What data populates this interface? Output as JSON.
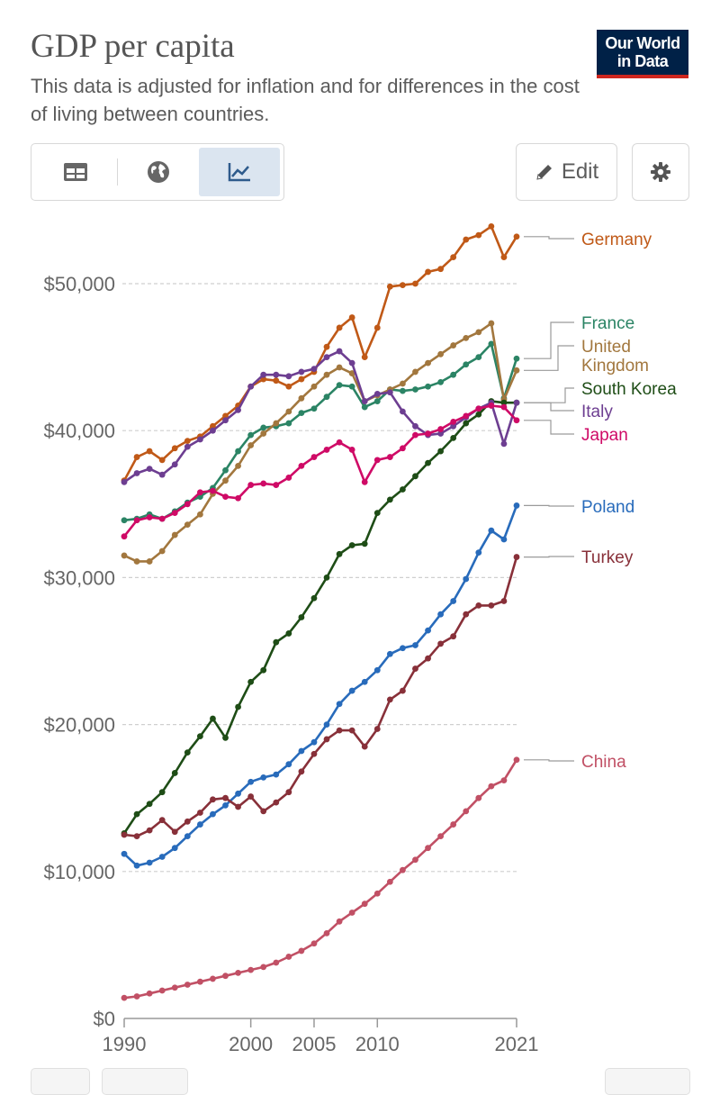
{
  "header": {
    "title": "GDP per capita",
    "subtitle": "This data is adjusted for inflation and for differences in the cost of living between countries.",
    "logo_line1": "Our World",
    "logo_line2": "in Data"
  },
  "toolbar": {
    "tabs": [
      {
        "name": "table",
        "icon": "table-icon"
      },
      {
        "name": "map",
        "icon": "globe-icon"
      },
      {
        "name": "chart",
        "icon": "line-chart-icon",
        "active": true
      }
    ],
    "edit_label": "Edit",
    "settings_icon": "gear-icon"
  },
  "chart_data": {
    "type": "line",
    "title": "GDP per capita",
    "xlabel": "",
    "ylabel": "",
    "ylim": [
      0,
      56000
    ],
    "yticks": [
      0,
      10000,
      20000,
      30000,
      40000,
      50000
    ],
    "ytick_labels": [
      "$0",
      "$10,000",
      "$20,000",
      "$30,000",
      "$40,000",
      "$50,000"
    ],
    "xticks": [
      1990,
      2000,
      2005,
      2010,
      2021
    ],
    "xtick_labels": [
      "1990",
      "2000",
      "2005",
      "2010",
      "2021"
    ],
    "x": [
      1990,
      1991,
      1992,
      1993,
      1994,
      1995,
      1996,
      1997,
      1998,
      1999,
      2000,
      2001,
      2002,
      2003,
      2004,
      2005,
      2006,
      2007,
      2008,
      2009,
      2010,
      2011,
      2012,
      2013,
      2014,
      2015,
      2016,
      2017,
      2018,
      2019,
      2020,
      2021
    ],
    "series": [
      {
        "name": "Germany",
        "label_lines": [
          "Germany"
        ],
        "color": "#c05917",
        "values": [
          36600,
          38200,
          38600,
          38000,
          38800,
          39300,
          39600,
          40300,
          41000,
          41700,
          43000,
          43500,
          43400,
          43000,
          43500,
          44000,
          45700,
          47000,
          47700,
          45000,
          47000,
          49800,
          49900,
          50000,
          50800,
          51000,
          51800,
          53000,
          53300,
          53900,
          51800,
          53200
        ]
      },
      {
        "name": "France",
        "label_lines": [
          "France"
        ],
        "color": "#2b8465",
        "values": [
          33900,
          34000,
          34300,
          34000,
          34500,
          35100,
          35500,
          36100,
          37300,
          38600,
          39700,
          40200,
          40300,
          40500,
          41200,
          41500,
          42300,
          43100,
          43000,
          41600,
          42000,
          42800,
          42700,
          42800,
          43000,
          43300,
          43800,
          44500,
          45000,
          45900,
          42200,
          44900
        ]
      },
      {
        "name": "United Kingdom",
        "label_lines": [
          "United",
          "Kingdom"
        ],
        "color": "#a2773e",
        "values": [
          31500,
          31100,
          31100,
          31800,
          32900,
          33600,
          34300,
          35700,
          36600,
          37600,
          39000,
          39800,
          40500,
          41300,
          42200,
          43000,
          43800,
          44300,
          43900,
          42000,
          42400,
          42800,
          43200,
          44000,
          44600,
          45200,
          45800,
          46300,
          46700,
          47300,
          42100,
          44100
        ]
      },
      {
        "name": "South Korea",
        "label_lines": [
          "South Korea"
        ],
        "color": "#1e4d16",
        "values": [
          12600,
          13900,
          14600,
          15400,
          16700,
          18100,
          19200,
          20400,
          19100,
          21200,
          22900,
          23700,
          25600,
          26200,
          27300,
          28600,
          30000,
          31600,
          32200,
          32300,
          34400,
          35300,
          36000,
          36900,
          37800,
          38600,
          39500,
          40500,
          41100,
          42000,
          41900,
          41900
        ]
      },
      {
        "name": "Italy",
        "label_lines": [
          "Italy"
        ],
        "color": "#6d3e91",
        "values": [
          36500,
          37100,
          37400,
          37000,
          37700,
          38900,
          39400,
          40000,
          40700,
          41400,
          43000,
          43800,
          43800,
          43700,
          44000,
          44200,
          45000,
          45400,
          44600,
          42000,
          42500,
          42600,
          41300,
          40300,
          39700,
          39800,
          40300,
          40900,
          41500,
          41900,
          39100,
          41900
        ]
      },
      {
        "name": "Japan",
        "label_lines": [
          "Japan"
        ],
        "color": "#cf0a66",
        "values": [
          32800,
          33900,
          34100,
          34000,
          34400,
          35000,
          35800,
          35900,
          35500,
          35400,
          36300,
          36400,
          36300,
          36800,
          37600,
          38200,
          38700,
          39200,
          38700,
          36500,
          38000,
          38200,
          38800,
          39700,
          39800,
          40100,
          40600,
          41000,
          41500,
          41700,
          41600,
          40700
        ]
      },
      {
        "name": "Poland",
        "label_lines": [
          "Poland"
        ],
        "color": "#286bbb",
        "values": [
          11200,
          10400,
          10600,
          11000,
          11600,
          12400,
          13200,
          13900,
          14500,
          15300,
          16100,
          16400,
          16600,
          17300,
          18200,
          18800,
          20000,
          21400,
          22300,
          22900,
          23700,
          24800,
          25200,
          25400,
          26400,
          27500,
          28400,
          29900,
          31700,
          33200,
          32600,
          34900
        ]
      },
      {
        "name": "Turkey",
        "label_lines": [
          "Turkey"
        ],
        "color": "#883039",
        "values": [
          12500,
          12400,
          12800,
          13500,
          12700,
          13400,
          14000,
          14900,
          15000,
          14400,
          15100,
          14100,
          14700,
          15400,
          16800,
          18000,
          19000,
          19600,
          19600,
          18500,
          19700,
          21700,
          22300,
          23800,
          24500,
          25500,
          26000,
          27500,
          28100,
          28100,
          28400,
          31400
        ]
      },
      {
        "name": "China",
        "label_lines": [
          "China"
        ],
        "color": "#c15065",
        "values": [
          1400,
          1500,
          1700,
          1900,
          2100,
          2300,
          2500,
          2700,
          2900,
          3100,
          3300,
          3500,
          3800,
          4200,
          4600,
          5100,
          5800,
          6600,
          7200,
          7800,
          8500,
          9300,
          10100,
          10800,
          11600,
          12400,
          13200,
          14100,
          15000,
          15800,
          16200,
          17600
        ]
      }
    ]
  }
}
